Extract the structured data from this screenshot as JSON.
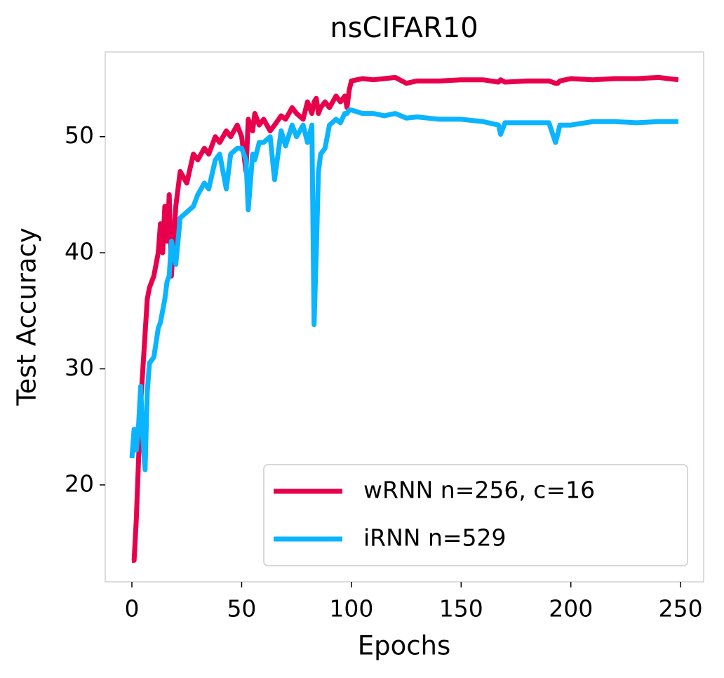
{
  "chart_data": {
    "type": "line",
    "title": "nsCIFAR10",
    "x_label": "Epochs",
    "y_label": "Test Accuracy",
    "x": [
      0,
      1,
      2,
      3,
      4,
      5,
      6,
      7,
      8,
      10,
      12,
      13,
      14,
      15,
      16,
      17,
      18,
      20,
      22,
      25,
      28,
      30,
      33,
      35,
      38,
      40,
      43,
      45,
      48,
      50,
      52,
      53,
      55,
      56,
      58,
      60,
      63,
      65,
      68,
      70,
      73,
      75,
      78,
      80,
      82,
      83,
      84,
      85,
      86,
      88,
      90,
      93,
      95,
      97,
      98,
      99,
      100,
      105,
      110,
      115,
      120,
      125,
      130,
      140,
      150,
      160,
      167,
      168,
      170,
      180,
      190,
      193,
      194,
      195,
      200,
      210,
      220,
      230,
      240,
      249
    ],
    "series": [
      {
        "name": "wRNN n=256, c=16",
        "color": "#e8004c",
        "values": [
          13.5,
          13.5,
          17,
          22,
          27,
          30,
          33,
          36,
          37,
          38,
          40,
          42.5,
          40,
          44,
          41,
          45,
          38,
          44,
          47,
          46,
          48.5,
          48,
          49,
          48.5,
          50,
          49.5,
          50.5,
          50,
          51,
          50,
          47,
          51.5,
          50.5,
          52,
          51,
          51.5,
          50.5,
          51,
          51.8,
          51.5,
          52.5,
          52,
          51.5,
          53,
          52,
          53,
          53.3,
          52,
          52.5,
          53,
          52.5,
          53.5,
          53,
          53.5,
          52.5,
          54,
          54.8,
          55,
          54.9,
          55,
          55.1,
          54.6,
          54.8,
          54.8,
          54.9,
          54.9,
          54.7,
          54.9,
          54.7,
          54.8,
          54.8,
          54.6,
          54.6,
          54.8,
          55,
          54.9,
          55,
          55,
          55.1,
          54.9
        ]
      },
      {
        "name": "iRNN n=529",
        "color": "#0bb4ff",
        "values": [
          22.3,
          24.8,
          23,
          25,
          28.5,
          24,
          21.3,
          28,
          30.5,
          31,
          33.5,
          34,
          35,
          36,
          37.5,
          38,
          41,
          39,
          43,
          43.5,
          44,
          45,
          46,
          45.5,
          48,
          48.5,
          45.5,
          48.5,
          49,
          49,
          48,
          43.7,
          48.5,
          48,
          49.5,
          49.5,
          50,
          46.3,
          50.5,
          49.2,
          51,
          50,
          51,
          49.5,
          51,
          33.8,
          40,
          47,
          48.5,
          49,
          51,
          51.5,
          51.2,
          52,
          52,
          52.3,
          52.3,
          52,
          52,
          51.8,
          52,
          51.6,
          51.7,
          51.5,
          51.5,
          51.3,
          51,
          50.2,
          51.2,
          51.2,
          51.2,
          49.5,
          50.2,
          51,
          51,
          51.3,
          51.3,
          51.2,
          51.3,
          51.3
        ]
      }
    ],
    "xlim": [
      -12.15,
      260.5
    ],
    "ylim": [
      11.65,
      57.3
    ],
    "xticks": [
      0,
      50,
      100,
      150,
      200,
      250
    ],
    "yticks": [
      20,
      30,
      40,
      50
    ],
    "legend": "lower right"
  }
}
